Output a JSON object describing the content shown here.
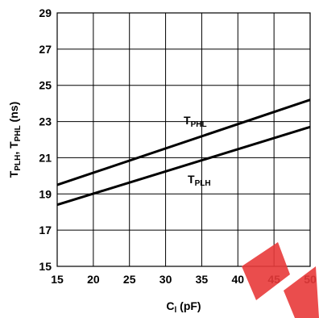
{
  "chart_data": {
    "type": "line",
    "x_ticks": [
      15,
      20,
      25,
      30,
      35,
      40,
      45,
      50
    ],
    "y_ticks": [
      15,
      17,
      19,
      21,
      23,
      25,
      27,
      29
    ],
    "xlim": [
      15,
      50
    ],
    "ylim": [
      15,
      29
    ],
    "grid": true,
    "xlabel": {
      "main": "C",
      "sub": "l",
      "tail": " (pF)"
    },
    "ylabel": {
      "p1": "T",
      "s1": "PLH",
      "p2": ", T",
      "s2": "PHL",
      "p3": " (ns)"
    },
    "series": [
      {
        "name_main": "T",
        "name_sub": "PHL",
        "x": [
          15,
          50
        ],
        "y": [
          19.5,
          24.2
        ],
        "color": "#000000"
      },
      {
        "name_main": "T",
        "name_sub": "PLH",
        "x": [
          15,
          50
        ],
        "y": [
          18.4,
          22.7
        ],
        "color": "#000000"
      }
    ]
  },
  "watermark_color": "#e83a3a"
}
